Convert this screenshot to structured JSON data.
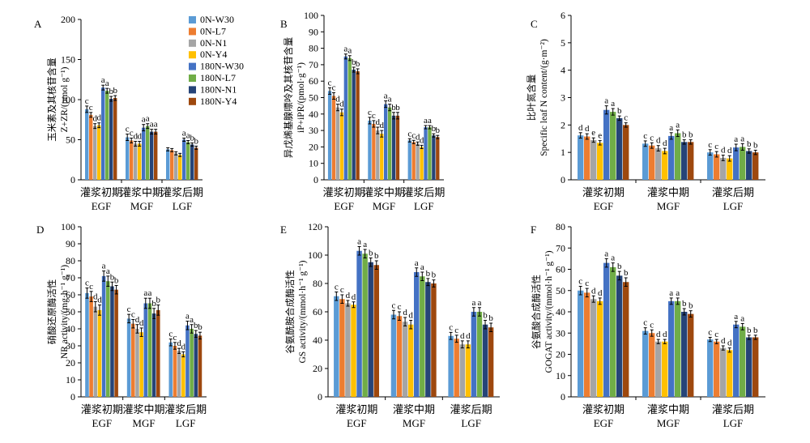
{
  "colors": [
    "#5b9bd5",
    "#ed7d31",
    "#a5a5a5",
    "#ffc000",
    "#4472c4",
    "#70ad47",
    "#264478",
    "#9e480e"
  ],
  "legend": [
    "0N-W30",
    "0N-L7",
    "0N-N1",
    "0N-Y4",
    "180N-W30",
    "180N-L7",
    "180N-N1",
    "180N-Y4"
  ],
  "chart_data": [
    {
      "type": "bar",
      "panel": "A",
      "ylabel_cn": "玉米素及其核苷含量",
      "ylabel_en": "Z+ZR/(pmol g⁻¹)",
      "ylim": [
        0,
        200
      ],
      "yticks": [
        0,
        50,
        100,
        150,
        200
      ],
      "categories_cn": [
        "灌浆初期",
        "灌浆中期",
        "灌浆后期"
      ],
      "categories_en": [
        "EGF",
        "MGF",
        "LGF"
      ],
      "series": [
        {
          "name": "0N-W30",
          "values": [
            88,
            53,
            38
          ],
          "errors": [
            4,
            4,
            2
          ],
          "letters": [
            "c",
            "c",
            ""
          ]
        },
        {
          "name": "0N-L7",
          "values": [
            81,
            49,
            37
          ],
          "errors": [
            3,
            3,
            2
          ],
          "letters": [
            "c",
            "c",
            ""
          ]
        },
        {
          "name": "0N-N1",
          "values": [
            67,
            45,
            33
          ],
          "errors": [
            3,
            3,
            2
          ],
          "letters": [
            "d",
            "d",
            ""
          ]
        },
        {
          "name": "0N-Y4",
          "values": [
            68,
            45,
            31
          ],
          "errors": [
            3,
            3,
            2
          ],
          "letters": [
            "d",
            "d",
            ""
          ]
        },
        {
          "name": "180N-W30",
          "values": [
            115,
            65,
            50
          ],
          "errors": [
            3,
            4,
            2
          ],
          "letters": [
            "a",
            "a",
            "a"
          ]
        },
        {
          "name": "180N-L7",
          "values": [
            111,
            67,
            47
          ],
          "errors": [
            3,
            3,
            2
          ],
          "letters": [
            "a",
            "a",
            "a"
          ]
        },
        {
          "name": "180N-N1",
          "values": [
            101,
            60,
            44
          ],
          "errors": [
            3,
            3,
            2
          ],
          "letters": [
            "b",
            "a",
            "b"
          ]
        },
        {
          "name": "180N-Y4",
          "values": [
            102,
            60,
            40
          ],
          "errors": [
            3,
            3,
            2
          ],
          "letters": [
            "b",
            "a",
            "b"
          ]
        }
      ]
    },
    {
      "type": "bar",
      "panel": "B",
      "ylabel_cn": "异戊烯基腺嘌呤及其核苷含量",
      "ylabel_en": "iP+iPR/(pmol·g⁻¹)",
      "ylim": [
        0,
        100
      ],
      "yticks": [
        0,
        10,
        20,
        30,
        40,
        50,
        60,
        70,
        80,
        90,
        100
      ],
      "categories_cn": [
        "灌浆初期",
        "灌浆中期",
        "灌浆后期"
      ],
      "categories_en": [
        "EGF",
        "MGF",
        "LGF"
      ],
      "series": [
        {
          "name": "0N-W30",
          "values": [
            54,
            36,
            24
          ],
          "errors": [
            2,
            2,
            1
          ],
          "letters": [
            "c",
            "c",
            "c"
          ]
        },
        {
          "name": "0N-L7",
          "values": [
            51,
            34,
            23
          ],
          "errors": [
            2,
            2,
            1
          ],
          "letters": [
            "c",
            "c",
            "c"
          ]
        },
        {
          "name": "0N-N1",
          "values": [
            44,
            30,
            22
          ],
          "errors": [
            2,
            2,
            1
          ],
          "letters": [
            "d",
            "d",
            "d"
          ]
        },
        {
          "name": "0N-Y4",
          "values": [
            41,
            28,
            20
          ],
          "errors": [
            2,
            2,
            1
          ],
          "letters": [
            "d",
            "d",
            "d"
          ]
        },
        {
          "name": "180N-W30",
          "values": [
            75,
            46,
            32
          ],
          "errors": [
            1.5,
            2,
            1
          ],
          "letters": [
            "a",
            "a",
            "a"
          ]
        },
        {
          "name": "180N-L7",
          "values": [
            74,
            44,
            32
          ],
          "errors": [
            1.5,
            2,
            1
          ],
          "letters": [
            "a",
            "a",
            "a"
          ]
        },
        {
          "name": "180N-N1",
          "values": [
            67,
            39,
            27
          ],
          "errors": [
            1.5,
            2,
            1
          ],
          "letters": [
            "b",
            "b",
            "b"
          ]
        },
        {
          "name": "180N-Y4",
          "values": [
            66,
            39,
            26
          ],
          "errors": [
            1.5,
            2,
            1
          ],
          "letters": [
            "b",
            "b",
            "b"
          ]
        }
      ]
    },
    {
      "type": "bar",
      "panel": "C",
      "ylabel_cn": "比叶氮含量",
      "ylabel_en": "Specific leaf N content/(g·m⁻²)",
      "ylim": [
        0,
        6
      ],
      "yticks": [
        0,
        1,
        2,
        3,
        4,
        5,
        6
      ],
      "categories_cn": [
        "灌浆初期",
        "灌浆中期",
        "灌浆后期"
      ],
      "categories_en": [
        "EGF",
        "MGF",
        "LGF"
      ],
      "series": [
        {
          "name": "0N-W30",
          "values": [
            1.62,
            1.32,
            1.0
          ],
          "errors": [
            0.1,
            0.1,
            0.1
          ],
          "letters": [
            "d",
            "c",
            "c"
          ]
        },
        {
          "name": "0N-L7",
          "values": [
            1.58,
            1.25,
            0.93
          ],
          "errors": [
            0.1,
            0.1,
            0.1
          ],
          "letters": [
            "d",
            "c",
            "c"
          ]
        },
        {
          "name": "0N-N1",
          "values": [
            1.45,
            1.15,
            0.8
          ],
          "errors": [
            0.08,
            0.1,
            0.1
          ],
          "letters": [
            "e",
            "d",
            "d"
          ]
        },
        {
          "name": "0N-Y4",
          "values": [
            1.35,
            1.05,
            0.78
          ],
          "errors": [
            0.08,
            0.1,
            0.1
          ],
          "letters": [
            "e",
            "d",
            "d"
          ]
        },
        {
          "name": "180N-W30",
          "values": [
            2.55,
            1.6,
            1.18
          ],
          "errors": [
            0.15,
            0.12,
            0.12
          ],
          "letters": [
            "a",
            "a",
            "a"
          ]
        },
        {
          "name": "180N-L7",
          "values": [
            2.48,
            1.7,
            1.2
          ],
          "errors": [
            0.12,
            0.12,
            0.12
          ],
          "letters": [
            "a",
            "a",
            "a"
          ]
        },
        {
          "name": "180N-N1",
          "values": [
            2.25,
            1.38,
            1.05
          ],
          "errors": [
            0.08,
            0.08,
            0.08
          ],
          "letters": [
            "b",
            "b",
            "b"
          ]
        },
        {
          "name": "180N-Y4",
          "values": [
            2.0,
            1.38,
            1.0
          ],
          "errors": [
            0.08,
            0.08,
            0.08
          ],
          "letters": [
            "c",
            "b",
            "b"
          ]
        }
      ]
    },
    {
      "type": "bar",
      "panel": "D",
      "ylabel_cn": "硝酸还原酶活性",
      "ylabel_en": "NR activity/(mg·h⁻¹ g⁻¹)",
      "ylim": [
        0,
        100
      ],
      "yticks": [
        0,
        10,
        20,
        30,
        40,
        50,
        60,
        70,
        80,
        90,
        100
      ],
      "categories_cn": [
        "灌浆初期",
        "灌浆中期",
        "灌浆后期"
      ],
      "categories_en": [
        "EGF",
        "MGF",
        "LGF"
      ],
      "series": [
        {
          "name": "0N-W30",
          "values": [
            61,
            46,
            32
          ],
          "errors": [
            3,
            2.5,
            2
          ],
          "letters": [
            "c",
            "c",
            "c"
          ]
        },
        {
          "name": "0N-L7",
          "values": [
            59,
            43,
            30
          ],
          "errors": [
            3,
            2.5,
            2
          ],
          "letters": [
            "c",
            "c",
            "c"
          ]
        },
        {
          "name": "0N-N1",
          "values": [
            53,
            40,
            27
          ],
          "errors": [
            3,
            2.5,
            1.5
          ],
          "letters": [
            "d",
            "d",
            "d"
          ]
        },
        {
          "name": "0N-Y4",
          "values": [
            51,
            38,
            25
          ],
          "errors": [
            3,
            2.5,
            1.5
          ],
          "letters": [
            "d",
            "d",
            "d"
          ]
        },
        {
          "name": "180N-W30",
          "values": [
            71,
            55,
            42
          ],
          "errors": [
            3,
            3,
            2.5
          ],
          "letters": [
            "a",
            "a",
            "a"
          ]
        },
        {
          "name": "180N-L7",
          "values": [
            68,
            55,
            40
          ],
          "errors": [
            3,
            3,
            2.5
          ],
          "letters": [
            "a",
            "a",
            "a"
          ]
        },
        {
          "name": "180N-N1",
          "values": [
            65,
            49,
            37
          ],
          "errors": [
            2.5,
            3,
            2
          ],
          "letters": [
            "b",
            "b",
            "b"
          ]
        },
        {
          "name": "180N-Y4",
          "values": [
            63,
            51,
            36
          ],
          "errors": [
            2.5,
            3,
            2
          ],
          "letters": [
            "b",
            "b",
            "b"
          ]
        }
      ]
    },
    {
      "type": "bar",
      "panel": "E",
      "ylabel_cn": "谷氨酰胺合成酶活性",
      "ylabel_en": "GS activity/(mmol·h⁻¹ g⁻¹)",
      "ylim": [
        0,
        120
      ],
      "yticks": [
        0,
        20,
        40,
        60,
        80,
        100,
        120
      ],
      "categories_cn": [
        "灌浆初期",
        "灌浆中期",
        "灌浆后期"
      ],
      "categories_en": [
        "EGF",
        "MGF",
        "LGF"
      ],
      "series": [
        {
          "name": "0N-W30",
          "values": [
            71,
            58,
            43
          ],
          "errors": [
            3,
            3,
            2.5
          ],
          "letters": [
            "c",
            "c",
            "c"
          ]
        },
        {
          "name": "0N-L7",
          "values": [
            69,
            57,
            41
          ],
          "errors": [
            3,
            3,
            2.5
          ],
          "letters": [
            "c",
            "c",
            "c"
          ]
        },
        {
          "name": "0N-N1",
          "values": [
            66,
            53,
            37
          ],
          "errors": [
            2,
            3,
            2.5
          ],
          "letters": [
            "d",
            "d",
            "d"
          ]
        },
        {
          "name": "0N-Y4",
          "values": [
            65,
            51,
            37
          ],
          "errors": [
            2,
            3,
            2.5
          ],
          "letters": [
            "d",
            "d",
            "d"
          ]
        },
        {
          "name": "180N-W30",
          "values": [
            103,
            88,
            60
          ],
          "errors": [
            3,
            3,
            3
          ],
          "letters": [
            "a",
            "a",
            "a"
          ]
        },
        {
          "name": "180N-L7",
          "values": [
            101,
            85,
            60
          ],
          "errors": [
            3,
            3,
            3
          ],
          "letters": [
            "a",
            "a",
            "a"
          ]
        },
        {
          "name": "180N-N1",
          "values": [
            95,
            81,
            51
          ],
          "errors": [
            3,
            2.5,
            3
          ],
          "letters": [
            "b",
            "b",
            "b"
          ]
        },
        {
          "name": "180N-Y4",
          "values": [
            93,
            80,
            49
          ],
          "errors": [
            3,
            2.5,
            3
          ],
          "letters": [
            "b",
            "b",
            "b"
          ]
        }
      ]
    },
    {
      "type": "bar",
      "panel": "F",
      "ylabel_cn": "谷氨酸合成酶活性",
      "ylabel_en": "GOGAT activity/(mmol·h⁻¹ g⁻¹)",
      "ylim": [
        0,
        80
      ],
      "yticks": [
        0,
        10,
        20,
        30,
        40,
        50,
        60,
        70,
        80
      ],
      "categories_cn": [
        "灌浆初期",
        "灌浆中期",
        "灌浆后期"
      ],
      "categories_en": [
        "EGF",
        "MGF",
        "LGF"
      ],
      "series": [
        {
          "name": "0N-W30",
          "values": [
            50,
            31,
            27
          ],
          "errors": [
            2,
            1.5,
            1
          ],
          "letters": [
            "c",
            "c",
            "c"
          ]
        },
        {
          "name": "0N-L7",
          "values": [
            49,
            30,
            26
          ],
          "errors": [
            2,
            1.5,
            1
          ],
          "letters": [
            "c",
            "c",
            "c"
          ]
        },
        {
          "name": "0N-N1",
          "values": [
            46,
            26,
            23
          ],
          "errors": [
            1.5,
            1,
            1
          ],
          "letters": [
            "d",
            "d",
            "d"
          ]
        },
        {
          "name": "0N-Y4",
          "values": [
            45,
            26,
            22
          ],
          "errors": [
            1.5,
            1,
            1
          ],
          "letters": [
            "d",
            "d",
            "d"
          ]
        },
        {
          "name": "180N-W30",
          "values": [
            63,
            45,
            34
          ],
          "errors": [
            2,
            1.5,
            1.5
          ],
          "letters": [
            "a",
            "a",
            "a"
          ]
        },
        {
          "name": "180N-L7",
          "values": [
            61,
            45,
            33
          ],
          "errors": [
            2,
            1.5,
            1.5
          ],
          "letters": [
            "a",
            "a",
            "a"
          ]
        },
        {
          "name": "180N-N1",
          "values": [
            57,
            40,
            28
          ],
          "errors": [
            2,
            1.5,
            1
          ],
          "letters": [
            "b",
            "b",
            "b"
          ]
        },
        {
          "name": "180N-Y4",
          "values": [
            54,
            39,
            28
          ],
          "errors": [
            2,
            1.5,
            1
          ],
          "letters": [
            "b",
            "b",
            "b"
          ]
        }
      ]
    }
  ]
}
